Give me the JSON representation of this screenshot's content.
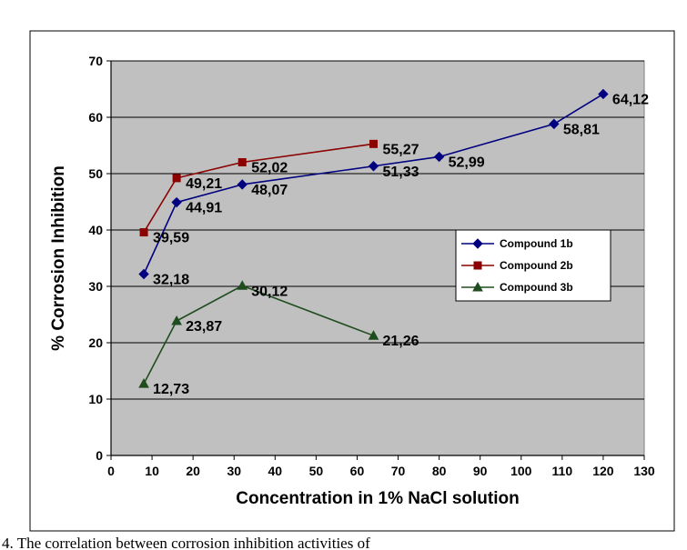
{
  "chart_data": {
    "type": "line",
    "title": "",
    "xlabel": "Concentration in 1% NaCl solution",
    "ylabel": "% Corrosion Inhibition",
    "xlim": [
      0,
      130
    ],
    "ylim": [
      0,
      70
    ],
    "xticks": [
      0,
      10,
      20,
      30,
      40,
      50,
      60,
      70,
      80,
      90,
      100,
      110,
      120,
      130
    ],
    "yticks": [
      0,
      10,
      20,
      30,
      40,
      50,
      60,
      70
    ],
    "grid": "horizontal",
    "plot_background": "#c0c0c0",
    "legend_position": "right",
    "series": [
      {
        "name": "Compound 1b",
        "color": "#000080",
        "marker": "diamond",
        "x": [
          8,
          16,
          32,
          64,
          80,
          108,
          120
        ],
        "y": [
          32.18,
          44.91,
          48.07,
          51.33,
          52.99,
          58.81,
          64.12
        ],
        "labels": [
          "32,18",
          "44,91",
          "48,07",
          "51,33",
          "52,99",
          "58,81",
          "64,12"
        ]
      },
      {
        "name": "Compound 2b",
        "color": "#8b0000",
        "marker": "square",
        "x": [
          8,
          16,
          32,
          64
        ],
        "y": [
          39.59,
          49.21,
          52.02,
          55.27
        ],
        "labels": [
          "39,59",
          "49,21",
          "52,02",
          "55,27"
        ]
      },
      {
        "name": "Compound 3b",
        "color": "#1f4d1f",
        "marker": "triangle",
        "x": [
          8,
          16,
          32,
          64
        ],
        "y": [
          12.73,
          23.87,
          30.12,
          21.26
        ],
        "labels": [
          "12,73",
          "23,87",
          "30,12",
          "21,26"
        ]
      }
    ]
  },
  "caption": "4. The correlation between corrosion inhibition activities of"
}
